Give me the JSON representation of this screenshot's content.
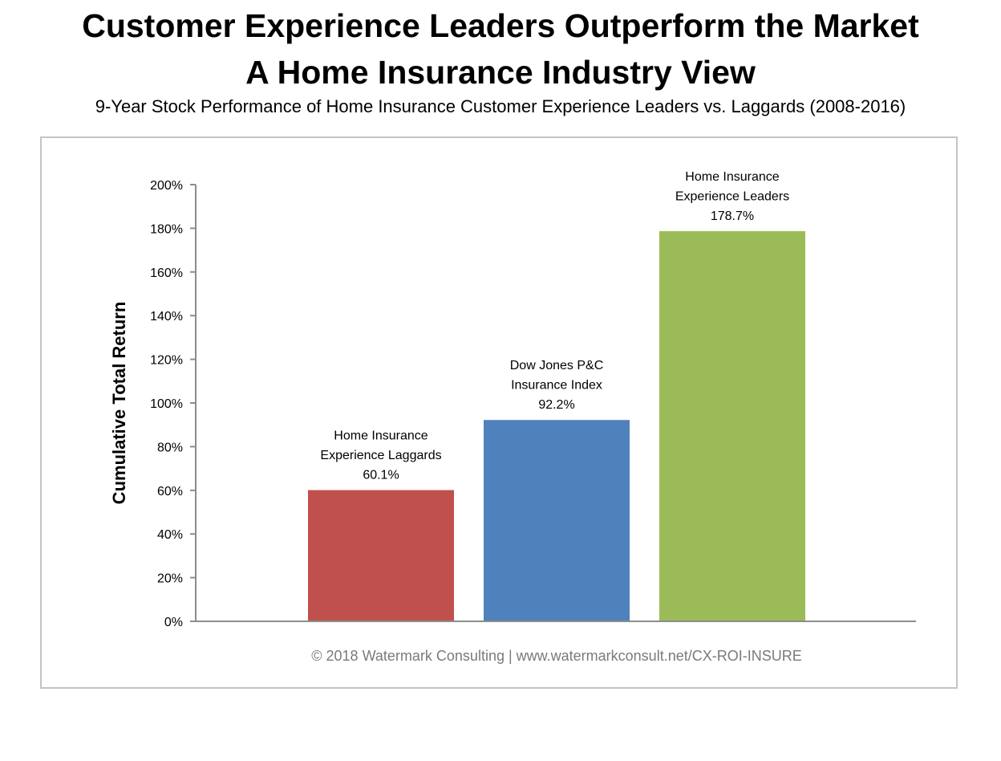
{
  "header": {
    "title_line1": "Customer Experience Leaders Outperform the Market",
    "title_line2": "A Home Insurance Industry View",
    "subtitle": "9-Year Stock Performance of Home Insurance Customer Experience Leaders vs. Laggards (2008-2016)"
  },
  "chart_data": {
    "type": "bar",
    "title": "Customer Experience Leaders Outperform the Market",
    "subtitle": "A Home Insurance Industry View",
    "xlabel": "",
    "ylabel": "Cumulative Total Return",
    "ylim": [
      0,
      200
    ],
    "y_ticks": [
      "0%",
      "20%",
      "40%",
      "60%",
      "80%",
      "100%",
      "120%",
      "140%",
      "160%",
      "180%",
      "200%"
    ],
    "y_tick_values": [
      0,
      20,
      40,
      60,
      80,
      100,
      120,
      140,
      160,
      180,
      200
    ],
    "grid": false,
    "bars": [
      {
        "label_lines": [
          "Home Insurance",
          "Experience Laggards"
        ],
        "value": 60.1,
        "value_label": "60.1%",
        "color": "#c0504d"
      },
      {
        "label_lines": [
          "Dow Jones P&C",
          "Insurance Index"
        ],
        "value": 92.2,
        "value_label": "92.2%",
        "color": "#4f81bd"
      },
      {
        "label_lines": [
          "Home Insurance",
          "Experience Leaders"
        ],
        "value": 178.7,
        "value_label": "178.7%",
        "color": "#9bbb59"
      }
    ],
    "footer": "© 2018 Watermark Consulting | www.watermarkconsult.net/CX-ROI-INSURE"
  }
}
